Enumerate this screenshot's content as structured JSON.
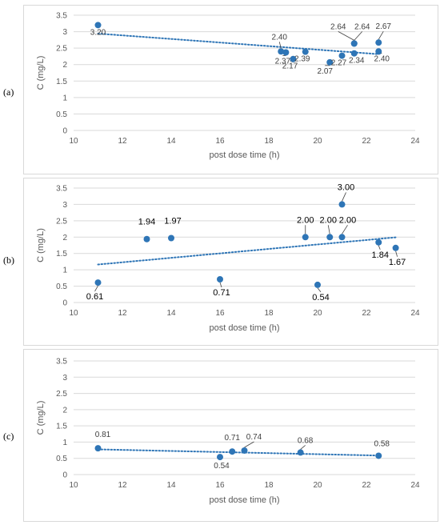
{
  "panels": [
    {
      "id": "a",
      "label": "(a)",
      "chart_data": {
        "type": "scatter",
        "xlabel": "post dose time (h)",
        "ylabel": "C (mg/L)",
        "xlim": [
          10,
          24
        ],
        "ylim": [
          0,
          3.5
        ],
        "x_ticks": [
          10,
          12,
          14,
          16,
          18,
          20,
          22,
          24
        ],
        "y_ticks": [
          0,
          0.5,
          1,
          1.5,
          2,
          2.5,
          3,
          3.5
        ],
        "y_tick_labels": [
          "0",
          "0.5",
          "1",
          "1.5",
          "2",
          "2.5",
          "3",
          "3.5"
        ],
        "grid": "horizontal",
        "trendline": "linear dotted",
        "points": [
          {
            "x": 11.0,
            "y": 3.2,
            "label": "3.20"
          },
          {
            "x": 18.5,
            "y": 2.4,
            "label": "2.40"
          },
          {
            "x": 18.7,
            "y": 2.37,
            "label": "2.37"
          },
          {
            "x": 19.0,
            "y": 2.17,
            "label": "2.17"
          },
          {
            "x": 19.5,
            "y": 2.39,
            "label": "2.39"
          },
          {
            "x": 20.5,
            "y": 2.07,
            "label": "2.07"
          },
          {
            "x": 21.0,
            "y": 2.27,
            "label": "2.27"
          },
          {
            "x": 21.5,
            "y": 2.34,
            "label": "2.34"
          },
          {
            "x": 21.5,
            "y": 2.64,
            "label": "2.64"
          },
          {
            "x": 21.5,
            "y": 2.64,
            "label": "2.64"
          },
          {
            "x": 22.5,
            "y": 2.67,
            "label": "2.67"
          },
          {
            "x": 22.5,
            "y": 2.4,
            "label": "2.40"
          }
        ]
      }
    },
    {
      "id": "b",
      "label": "(b)",
      "chart_data": {
        "type": "scatter",
        "xlabel": "post dose time (h)",
        "ylabel": "C (mg/L)",
        "xlim": [
          10,
          24
        ],
        "ylim": [
          0,
          3.5
        ],
        "x_ticks": [
          10,
          12,
          14,
          16,
          18,
          20,
          22,
          24
        ],
        "y_ticks": [
          0,
          0.5,
          1,
          1.5,
          2,
          2.5,
          3,
          3.5
        ],
        "y_tick_labels": [
          "0",
          "0.5",
          "1",
          "1.5",
          "2",
          "2.5",
          "3",
          "3.5"
        ],
        "grid": "horizontal",
        "trendline": "linear dotted",
        "points": [
          {
            "x": 11.0,
            "y": 0.61,
            "label": "0.61"
          },
          {
            "x": 13.0,
            "y": 1.94,
            "label": "1.94"
          },
          {
            "x": 14.0,
            "y": 1.97,
            "label": "1.97"
          },
          {
            "x": 16.0,
            "y": 0.71,
            "label": "0.71"
          },
          {
            "x": 19.5,
            "y": 2.0,
            "label": "2.00"
          },
          {
            "x": 20.0,
            "y": 0.54,
            "label": "0.54"
          },
          {
            "x": 20.5,
            "y": 2.0,
            "label": "2.00"
          },
          {
            "x": 21.0,
            "y": 2.0,
            "label": "2.00"
          },
          {
            "x": 21.0,
            "y": 3.0,
            "label": "3.00"
          },
          {
            "x": 22.5,
            "y": 1.84,
            "label": "1.84"
          },
          {
            "x": 23.2,
            "y": 1.67,
            "label": "1.67"
          }
        ]
      }
    },
    {
      "id": "c",
      "label": "(c)",
      "chart_data": {
        "type": "scatter",
        "xlabel": "post dose time (h)",
        "ylabel": "C (mg/L)",
        "xlim": [
          10,
          24
        ],
        "ylim": [
          0,
          3.5
        ],
        "x_ticks": [
          10,
          12,
          14,
          16,
          18,
          20,
          22,
          24
        ],
        "y_ticks": [
          0,
          0.5,
          1,
          1.5,
          2,
          2.5,
          3,
          3.5
        ],
        "y_tick_labels": [
          "0",
          "0.5",
          "1",
          "1.5",
          "2",
          "2.5",
          "3",
          "3.5"
        ],
        "grid": "horizontal",
        "trendline": "linear dotted",
        "points": [
          {
            "x": 11.0,
            "y": 0.81,
            "label": "0.81"
          },
          {
            "x": 16.0,
            "y": 0.54,
            "label": "0.54"
          },
          {
            "x": 16.5,
            "y": 0.71,
            "label": "0.71"
          },
          {
            "x": 17.0,
            "y": 0.74,
            "label": "0.74"
          },
          {
            "x": 19.3,
            "y": 0.68,
            "label": "0.68"
          },
          {
            "x": 22.5,
            "y": 0.58,
            "label": "0.58"
          }
        ]
      }
    }
  ],
  "colors": {
    "marker": "#2e75b6",
    "trendline": "#2e75b6",
    "grid": "#d9d9d9",
    "text": "#595959"
  }
}
